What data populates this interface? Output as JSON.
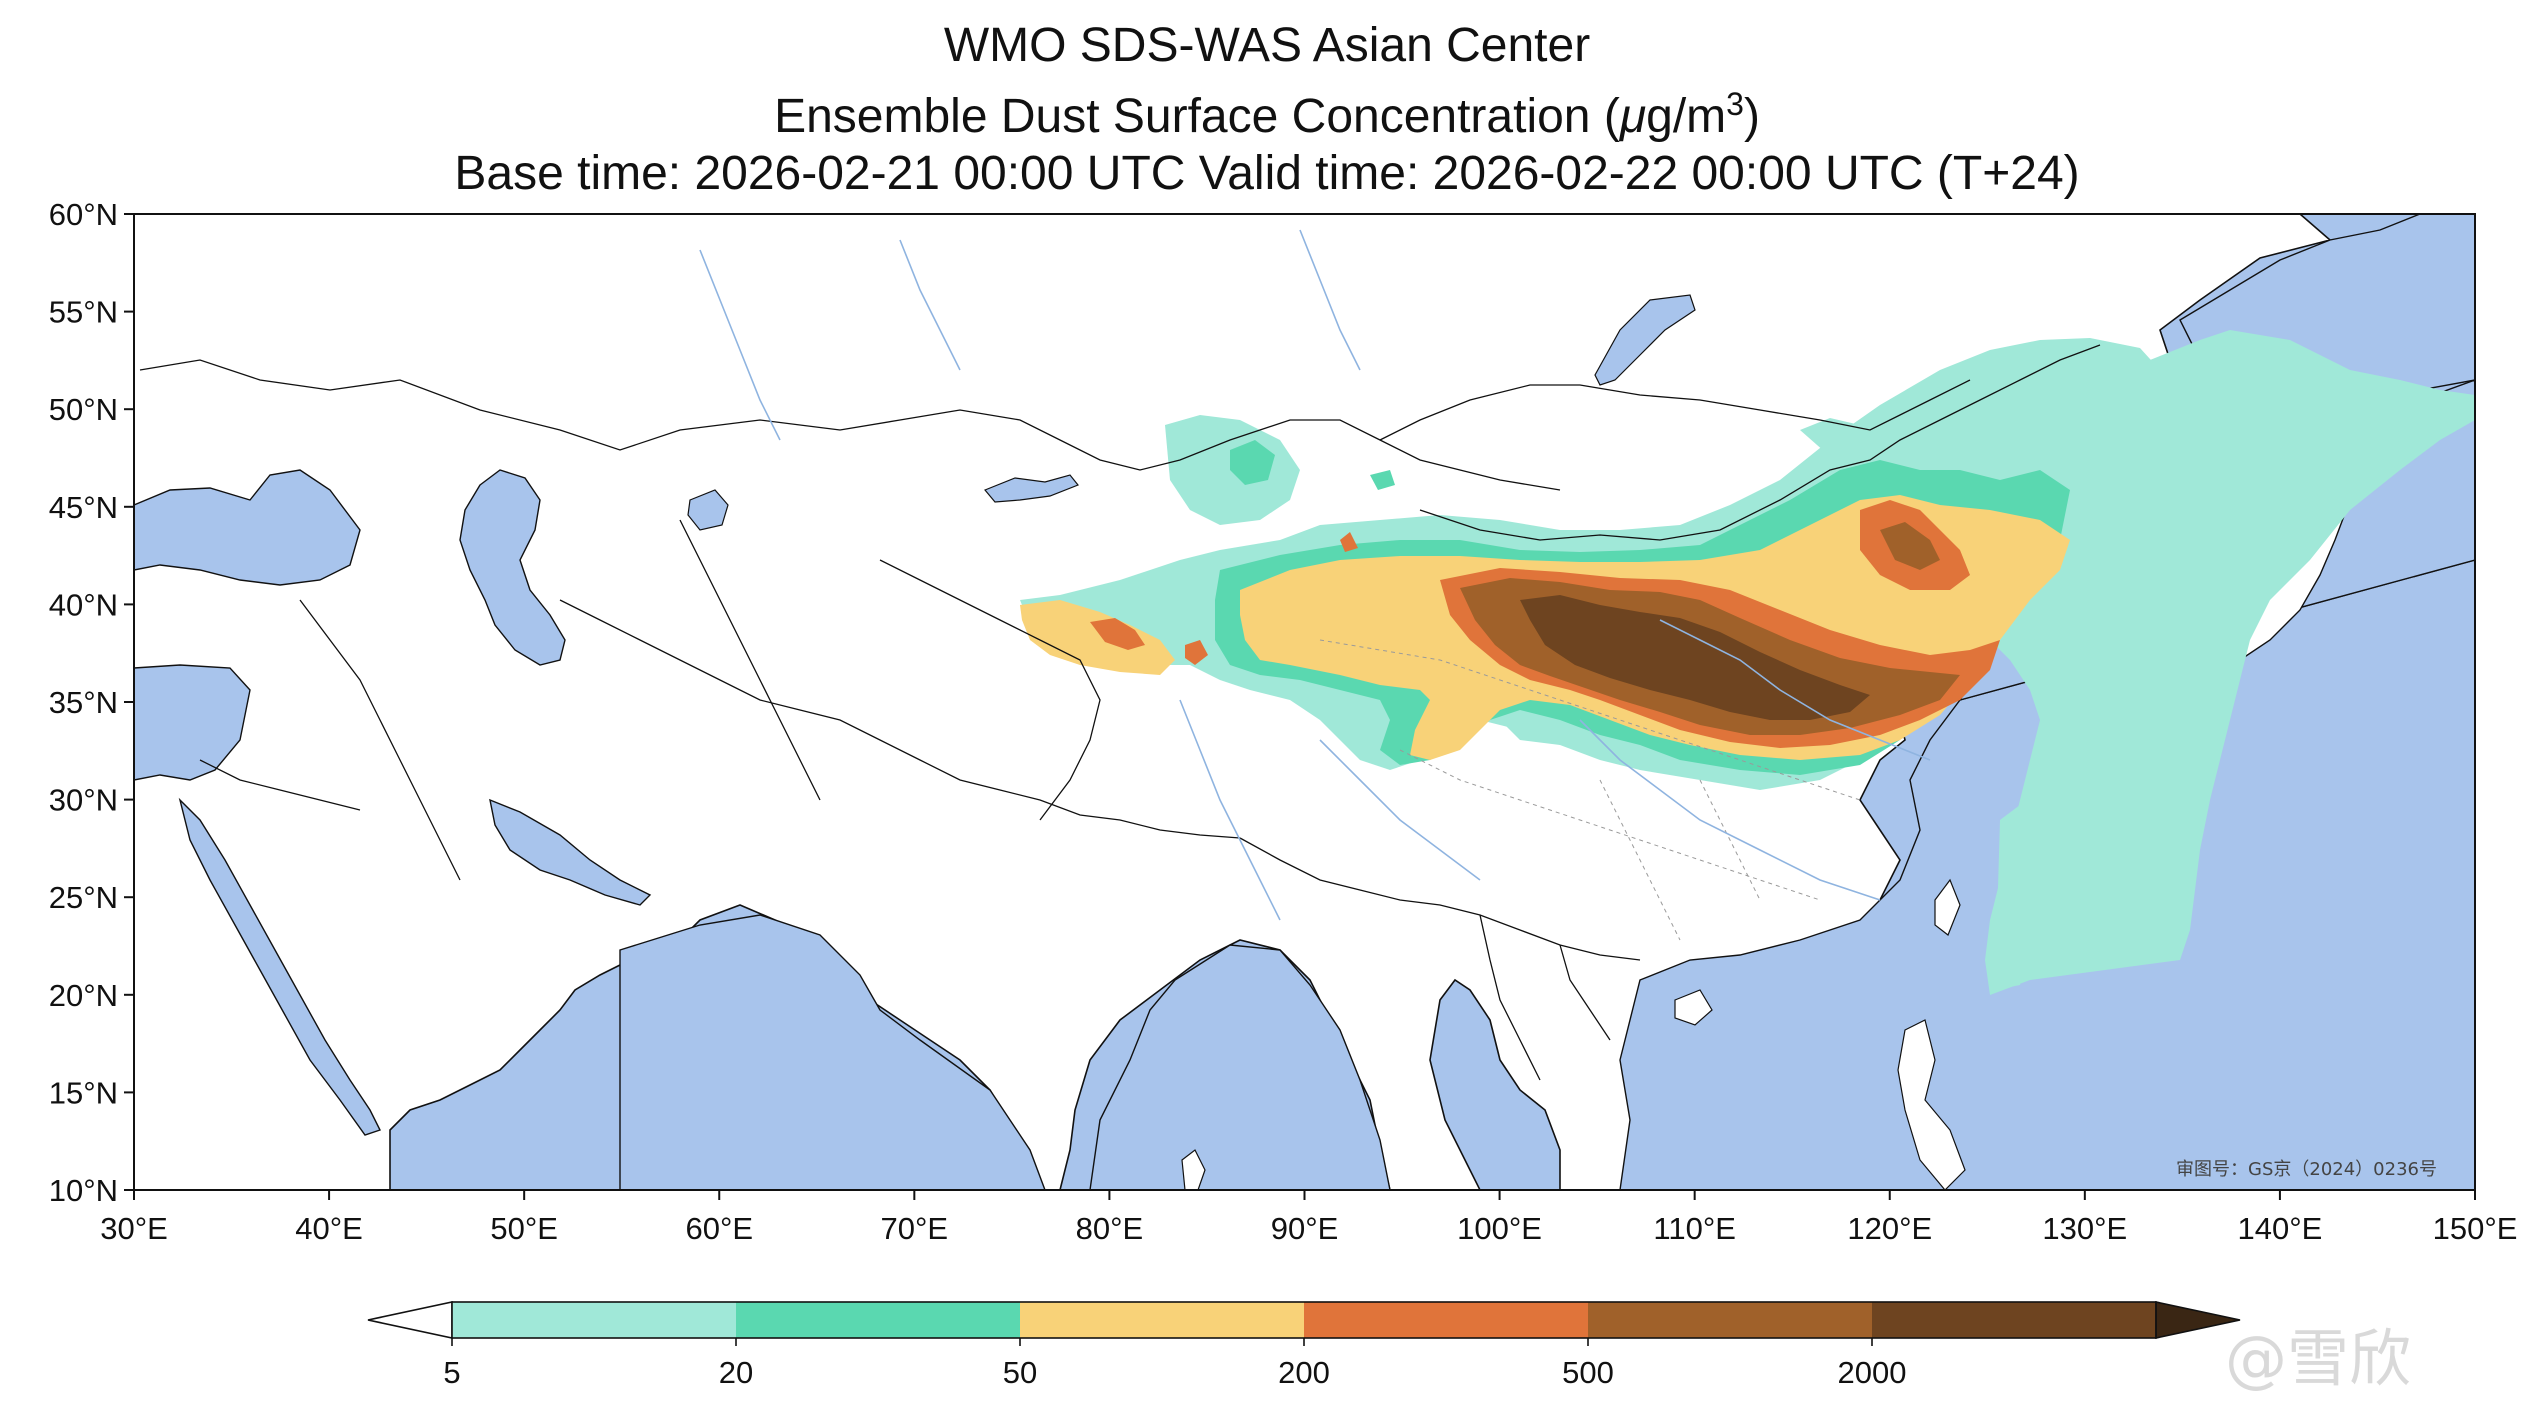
{
  "title": {
    "line1": "WMO SDS-WAS Asian Center",
    "line2_prefix": "Ensemble Dust Surface Concentration (",
    "line2_mu": "μ",
    "line2_unit": "g/m",
    "line2_sup": "3",
    "line2_suffix": ")",
    "line3": "Base time: 2026-02-21 00:00 UTC Valid time: 2026-02-22 00:00 UTC (T+24)"
  },
  "axes": {
    "lat_labels": [
      "60°N",
      "55°N",
      "50°N",
      "45°N",
      "40°N",
      "35°N",
      "30°N",
      "25°N",
      "20°N",
      "15°N",
      "10°N"
    ],
    "lon_labels": [
      "30°E",
      "40°E",
      "50°E",
      "60°E",
      "70°E",
      "80°E",
      "90°E",
      "100°E",
      "110°E",
      "120°E",
      "130°E",
      "140°E",
      "150°E"
    ],
    "lon_range": [
      30,
      150
    ],
    "lat_range": [
      10,
      60
    ]
  },
  "colorbar": {
    "levels": [
      "5",
      "20",
      "50",
      "200",
      "500",
      "2000"
    ],
    "colors": [
      "#a0e8d8",
      "#5ad8b0",
      "#f8d278",
      "#e0743a",
      "#a0612a",
      "#6e4420",
      "#3a2614"
    ],
    "extend": "both"
  },
  "map_colors": {
    "ocean": "#a8c4ec",
    "land": "#ffffff",
    "border": "#111111"
  },
  "map_note": "审图号：GS京（2024）0236号",
  "watermark": "@雪欣"
}
